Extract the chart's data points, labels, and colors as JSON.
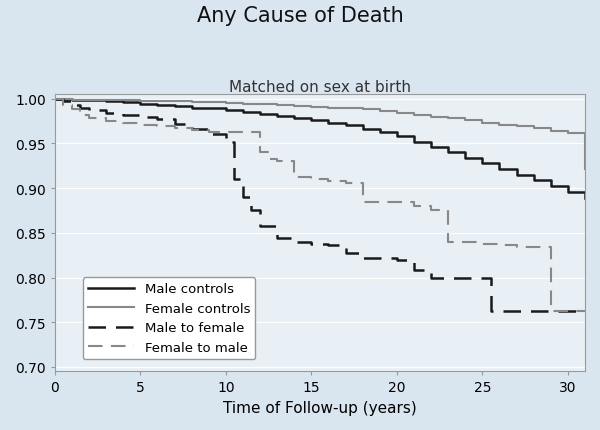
{
  "title": "Any Cause of Death",
  "subtitle": "Matched on sex at birth",
  "xlabel": "Time of Follow-up (years)",
  "ylabel": "",
  "background_color": "#dae6ef",
  "plot_background_color": "#e8f0f5",
  "xlim": [
    0,
    31
  ],
  "ylim": [
    0.695,
    1.005
  ],
  "yticks": [
    0.7,
    0.75,
    0.8,
    0.85,
    0.9,
    0.95,
    1.0
  ],
  "xticks": [
    0,
    5,
    10,
    15,
    20,
    25,
    30
  ],
  "male_controls": {
    "x": [
      0,
      1,
      2,
      3,
      4,
      5,
      6,
      7,
      8,
      9,
      10,
      11,
      12,
      13,
      14,
      15,
      16,
      17,
      18,
      19,
      20,
      21,
      22,
      23,
      24,
      25,
      26,
      27,
      28,
      29,
      30,
      31
    ],
    "y": [
      1.0,
      0.999,
      0.998,
      0.997,
      0.996,
      0.994,
      0.993,
      0.992,
      0.99,
      0.989,
      0.987,
      0.985,
      0.983,
      0.981,
      0.978,
      0.976,
      0.973,
      0.97,
      0.966,
      0.963,
      0.958,
      0.952,
      0.946,
      0.94,
      0.934,
      0.928,
      0.921,
      0.915,
      0.909,
      0.902,
      0.896,
      0.889
    ],
    "color": "#1a1a1a",
    "linestyle": "solid",
    "linewidth": 1.8
  },
  "female_controls": {
    "x": [
      0,
      1,
      2,
      3,
      4,
      5,
      6,
      7,
      8,
      9,
      10,
      11,
      12,
      13,
      14,
      15,
      16,
      17,
      18,
      19,
      20,
      21,
      22,
      23,
      24,
      25,
      26,
      27,
      28,
      29,
      30,
      31
    ],
    "y": [
      1.0,
      0.999,
      0.999,
      0.998,
      0.998,
      0.997,
      0.997,
      0.997,
      0.996,
      0.996,
      0.995,
      0.994,
      0.994,
      0.993,
      0.992,
      0.991,
      0.99,
      0.989,
      0.988,
      0.986,
      0.984,
      0.982,
      0.98,
      0.978,
      0.976,
      0.973,
      0.971,
      0.969,
      0.967,
      0.964,
      0.962,
      0.921
    ],
    "color": "#888888",
    "linestyle": "solid",
    "linewidth": 1.5
  },
  "male_to_female": {
    "x": [
      0,
      0.5,
      1.0,
      1.5,
      2,
      3,
      4,
      5,
      6,
      7,
      8,
      9,
      10,
      10.5,
      11,
      11.5,
      12,
      13,
      14,
      15,
      16,
      17,
      18,
      19,
      20,
      21,
      22,
      23,
      24,
      25,
      25.5,
      26,
      27,
      28,
      29,
      30,
      31
    ],
    "y": [
      1.0,
      0.997,
      0.993,
      0.99,
      0.987,
      0.984,
      0.982,
      0.979,
      0.977,
      0.972,
      0.966,
      0.96,
      0.952,
      0.91,
      0.89,
      0.875,
      0.858,
      0.844,
      0.84,
      0.838,
      0.836,
      0.827,
      0.822,
      0.822,
      0.82,
      0.808,
      0.8,
      0.8,
      0.8,
      0.8,
      0.763,
      0.763,
      0.763,
      0.763,
      0.763,
      0.763,
      0.763
    ],
    "color": "#1a1a1a",
    "linestyle": "dashed",
    "linewidth": 1.8,
    "dashes": [
      7,
      4
    ]
  },
  "female_to_male": {
    "x": [
      0,
      0.5,
      1.0,
      1.5,
      2,
      3,
      4,
      5,
      6,
      7,
      8,
      9,
      10,
      11,
      12,
      12.5,
      13,
      14,
      15,
      16,
      17,
      18,
      19,
      20,
      21,
      22,
      23,
      24,
      25,
      26,
      27,
      28,
      29,
      29.5,
      30,
      31
    ],
    "y": [
      1.0,
      0.993,
      0.988,
      0.982,
      0.978,
      0.975,
      0.973,
      0.971,
      0.969,
      0.967,
      0.965,
      0.963,
      0.963,
      0.963,
      0.94,
      0.933,
      0.93,
      0.912,
      0.91,
      0.908,
      0.906,
      0.884,
      0.884,
      0.884,
      0.88,
      0.876,
      0.84,
      0.84,
      0.838,
      0.836,
      0.834,
      0.834,
      0.763,
      0.763,
      0.763,
      0.763
    ],
    "color": "#888888",
    "linestyle": "dashed",
    "linewidth": 1.5,
    "dashes": [
      7,
      4
    ]
  },
  "legend_labels": [
    "Male controls",
    "Female controls",
    "Male to female",
    "Female to male"
  ],
  "title_fontsize": 15,
  "subtitle_fontsize": 11,
  "axis_fontsize": 11,
  "tick_fontsize": 10
}
